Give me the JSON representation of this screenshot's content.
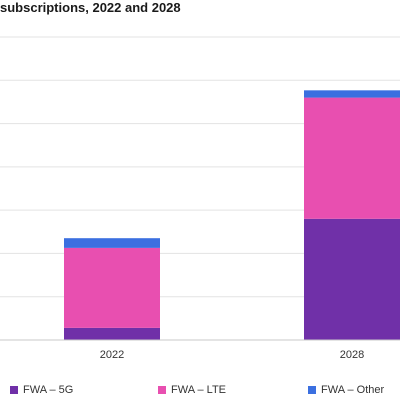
{
  "chart_data": {
    "type": "bar",
    "stacked": true,
    "title": "subscriptions, 2022 and 2028",
    "categories": [
      "2022",
      "2028"
    ],
    "series": [
      {
        "name": "FWA – 5G",
        "color": "#7030a8",
        "values": [
          10,
          100
        ]
      },
      {
        "name": "FWA – LTE",
        "color": "#e84fb0",
        "values": [
          66,
          100
        ]
      },
      {
        "name": "FWA – Other",
        "color": "#3b6fe0",
        "values": [
          8,
          6
        ]
      }
    ],
    "ylim": [
      0,
      250
    ],
    "grid": true,
    "legend": "bottom",
    "xlabel": "",
    "ylabel": ""
  }
}
